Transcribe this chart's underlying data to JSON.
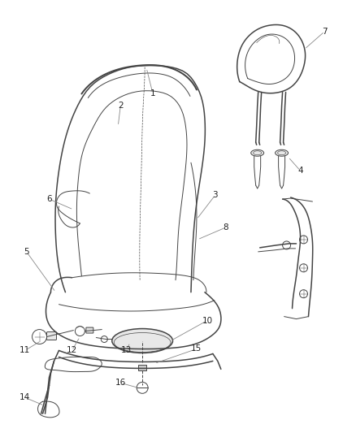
{
  "bg_color": "#ffffff",
  "line_color": "#444444",
  "label_color": "#222222",
  "leader_color": "#888888",
  "figsize": [
    4.38,
    5.33
  ],
  "dpi": 100,
  "font_size": 7.5,
  "lw_main": 1.1,
  "lw_thin": 0.7,
  "lw_leader": 0.6
}
